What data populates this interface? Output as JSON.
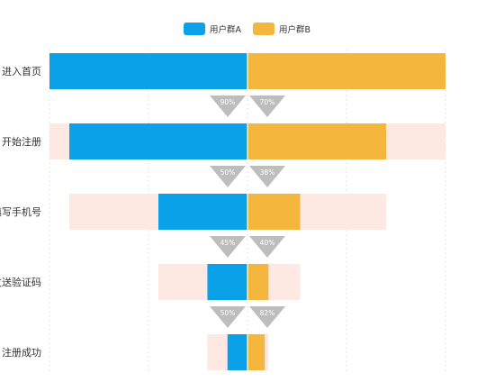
{
  "chart_data": {
    "type": "bar",
    "subtype": "comparison-funnel",
    "title": "",
    "xlabel": "",
    "ylabel": "",
    "legend_position": "top-center",
    "grid": true,
    "stages": [
      "进入首页",
      "开始注册",
      "填写手机号",
      "发送验证码",
      "注册成功"
    ],
    "series": [
      {
        "name": "用户群A",
        "color": "#0aa1e8",
        "values": [
          100,
          90,
          45,
          20.25,
          10.1
        ],
        "conversion_labels": [
          "90%",
          "50%",
          "45%",
          "50%"
        ]
      },
      {
        "name": "用户群B",
        "color": "#f4b63c",
        "values": [
          100,
          70,
          26.6,
          10.6,
          8.7
        ],
        "conversion_labels": [
          "70%",
          "38%",
          "40%",
          "82%"
        ]
      }
    ],
    "previous_stage_band_color": "#fde8e2",
    "conversion_arrow_color": "#bdbdbd",
    "xlim": [
      0,
      100
    ]
  }
}
